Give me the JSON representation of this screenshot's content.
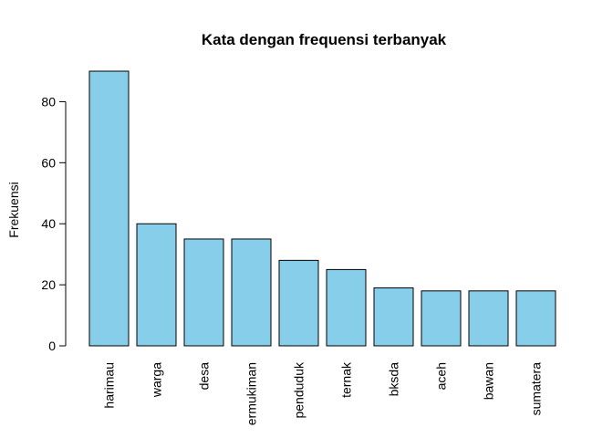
{
  "chart_data": {
    "type": "bar",
    "title": "Kata dengan frequensi terbanyak",
    "xlabel": "",
    "ylabel": "Frekuensi",
    "categories": [
      "harimau",
      "warga",
      "desa",
      "ermukiman",
      "penduduk",
      "ternak",
      "bksda",
      "aceh",
      "bawan",
      "sumatera"
    ],
    "values": [
      90,
      40,
      35,
      35,
      28,
      25,
      19,
      18,
      18,
      18
    ],
    "ylim": [
      0,
      90
    ],
    "yticks": [
      0,
      20,
      40,
      60,
      80
    ],
    "grid": false,
    "legend": "none",
    "bar_color": "#87CEEB",
    "tick_label_orientation": "vertical"
  }
}
